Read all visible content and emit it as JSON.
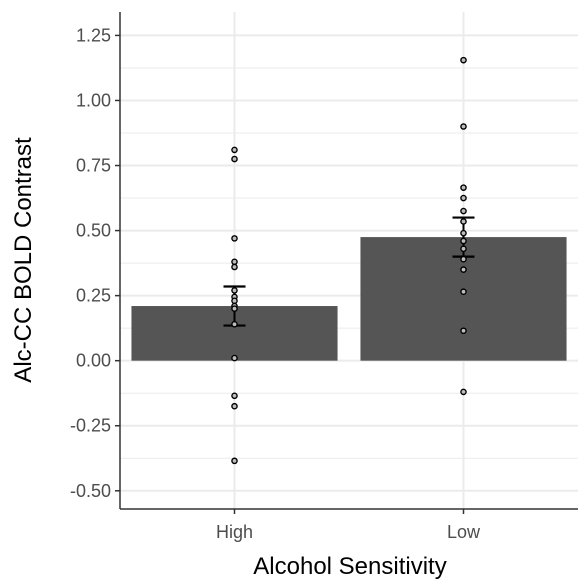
{
  "chart_data": {
    "type": "bar",
    "title": "",
    "xlabel": "Alcohol Sensitivity",
    "ylabel": "Alc-CC BOLD Contrast",
    "categories": [
      "High",
      "Low"
    ],
    "values": [
      0.21,
      0.475
    ],
    "error_bars": [
      {
        "lower": 0.135,
        "upper": 0.285
      },
      {
        "lower": 0.4,
        "upper": 0.55
      }
    ],
    "points": [
      [
        0.81,
        0.775,
        0.47,
        0.38,
        0.36,
        0.27,
        0.245,
        0.23,
        0.21,
        0.2,
        0.14,
        0.01,
        -0.135,
        -0.175,
        -0.385
      ],
      [
        1.155,
        0.9,
        0.665,
        0.625,
        0.575,
        0.535,
        0.49,
        0.46,
        0.43,
        0.39,
        0.35,
        0.265,
        0.115,
        -0.12
      ]
    ],
    "ylim": [
      -0.57,
      1.34
    ],
    "yticks": [
      "-0.50",
      "-0.25",
      "0.00",
      "0.25",
      "0.50",
      "0.75",
      "1.00",
      "1.25"
    ],
    "grid": true,
    "colors": {
      "bar": "#555555",
      "grid": "#ebebeb",
      "axis": "#333333",
      "point_fill": "#bdbdbd"
    }
  }
}
